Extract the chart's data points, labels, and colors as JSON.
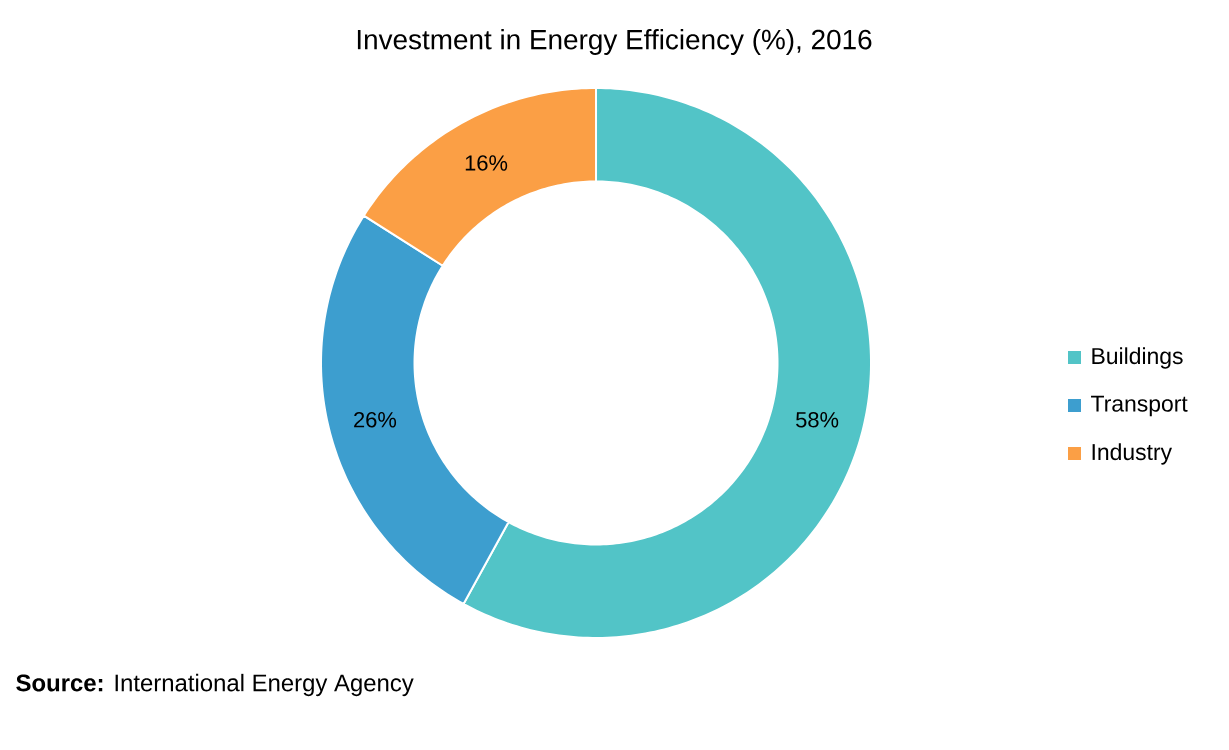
{
  "chart_data": {
    "type": "donut",
    "title": "Investment in Energy Efficiency (%), 2016",
    "categories": [
      "Buildings",
      "Transport",
      "Industry"
    ],
    "values": [
      58,
      26,
      16
    ],
    "colors": [
      "#52c4c7",
      "#3d9ecf",
      "#fb9f45"
    ],
    "value_labels": [
      "58%",
      "26%",
      "16%"
    ],
    "legend": "right",
    "annotations": [
      "**Source:** International Energy Agency"
    ]
  }
}
